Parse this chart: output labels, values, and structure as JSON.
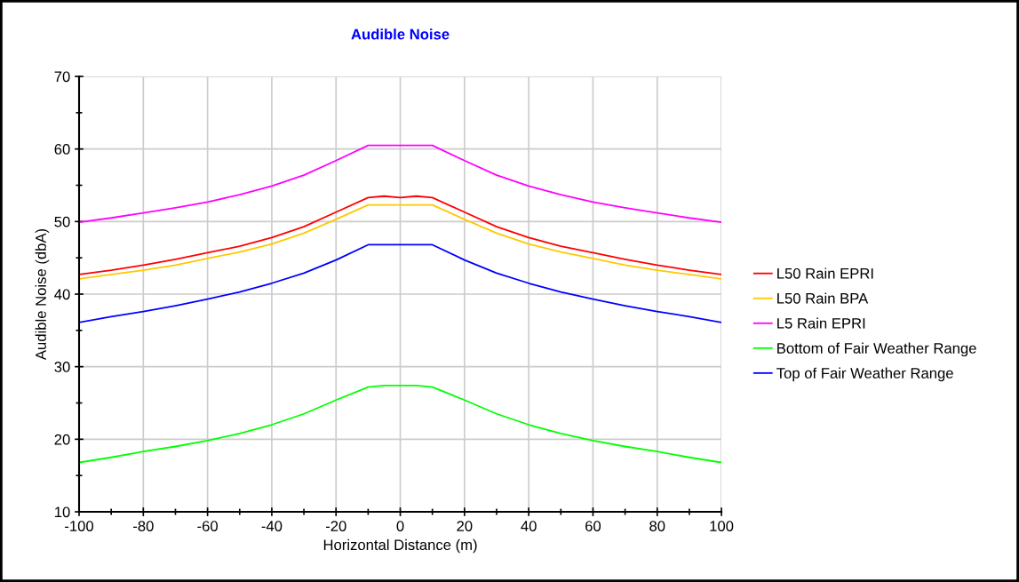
{
  "chart_data": {
    "type": "line",
    "title": "Audible Noise",
    "xlabel": "Horizontal Distance (m)",
    "ylabel": "Audible Noise (dbA)",
    "x": [
      -100,
      -90,
      -80,
      -70,
      -60,
      -50,
      -40,
      -30,
      -20,
      -10,
      -5,
      0,
      5,
      10,
      20,
      30,
      40,
      50,
      60,
      70,
      80,
      90,
      100
    ],
    "series": [
      {
        "name": "L50 Rain EPRI",
        "color": "#ff0000",
        "values": [
          42.7,
          43.3,
          44.0,
          44.8,
          45.7,
          46.6,
          47.8,
          49.3,
          51.3,
          53.3,
          53.5,
          53.3,
          53.5,
          53.3,
          51.3,
          49.3,
          47.8,
          46.6,
          45.7,
          44.8,
          44.0,
          43.3,
          42.7
        ]
      },
      {
        "name": "L50 Rain BPA",
        "color": "#ffc800",
        "values": [
          42.1,
          42.7,
          43.3,
          44.0,
          44.9,
          45.8,
          46.9,
          48.4,
          50.3,
          52.3,
          52.3,
          52.3,
          52.3,
          52.3,
          50.3,
          48.4,
          46.9,
          45.8,
          44.9,
          44.0,
          43.3,
          42.7,
          42.1
        ]
      },
      {
        "name": "L5 Rain EPRI",
        "color": "#ff00ff",
        "values": [
          49.9,
          50.5,
          51.2,
          51.9,
          52.7,
          53.7,
          54.9,
          56.4,
          58.4,
          60.5,
          60.5,
          60.5,
          60.5,
          60.5,
          58.4,
          56.4,
          54.9,
          53.7,
          52.7,
          51.9,
          51.2,
          50.5,
          49.9
        ]
      },
      {
        "name": "Bottom of Fair Weather Range",
        "color": "#00ff00",
        "values": [
          16.8,
          17.5,
          18.3,
          19.0,
          19.8,
          20.8,
          22.0,
          23.5,
          25.4,
          27.2,
          27.4,
          27.4,
          27.4,
          27.2,
          25.4,
          23.5,
          22.0,
          20.8,
          19.8,
          19.0,
          18.3,
          17.5,
          16.8
        ]
      },
      {
        "name": "Top of Fair Weather Range",
        "color": "#0000ff",
        "values": [
          36.1,
          36.9,
          37.6,
          38.4,
          39.3,
          40.3,
          41.5,
          42.9,
          44.7,
          46.8,
          46.8,
          46.8,
          46.8,
          46.8,
          44.7,
          42.9,
          41.5,
          40.3,
          39.3,
          38.4,
          37.6,
          36.9,
          36.1
        ]
      }
    ],
    "xlim": [
      -100,
      100
    ],
    "ylim": [
      10,
      70
    ],
    "xticks": [
      -100,
      {
        "value": -90,
        "label": null
      },
      -80,
      {
        "value": -70,
        "label": null
      },
      -60,
      {
        "value": -50,
        "label": null
      },
      -40,
      {
        "value": -30,
        "label": null
      },
      -20,
      {
        "value": -10,
        "label": null
      },
      0,
      {
        "value": 10,
        "label": null
      },
      20,
      {
        "value": 30,
        "label": null
      },
      40,
      {
        "value": 50,
        "label": null
      },
      60,
      {
        "value": 70,
        "label": null
      },
      80,
      {
        "value": 90,
        "label": null
      },
      100
    ],
    "yticks": [
      10,
      {
        "value": 15,
        "label": null
      },
      20,
      {
        "value": 25,
        "label": null
      },
      30,
      {
        "value": 35,
        "label": null
      },
      40,
      {
        "value": 45,
        "label": null
      },
      50,
      {
        "value": 55,
        "label": null
      },
      60,
      {
        "value": 65,
        "label": null
      },
      70
    ],
    "grid": true,
    "legend": "right",
    "marker": "none",
    "line_style": "solid"
  }
}
